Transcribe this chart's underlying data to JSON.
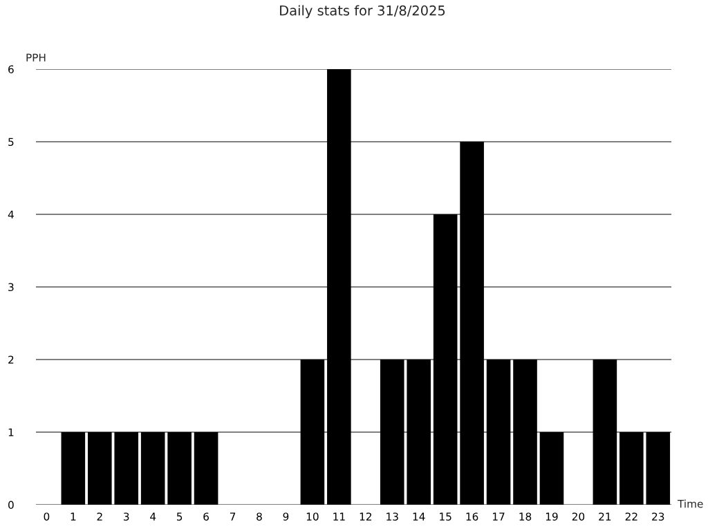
{
  "chart_data": {
    "type": "bar",
    "title": "Daily stats for 31/8/2025",
    "xlabel": "Time",
    "ylabel": "PPH",
    "categories": [
      "0",
      "1",
      "2",
      "3",
      "4",
      "5",
      "6",
      "7",
      "8",
      "9",
      "10",
      "11",
      "12",
      "13",
      "14",
      "15",
      "16",
      "17",
      "18",
      "19",
      "20",
      "21",
      "22",
      "23"
    ],
    "values": [
      0,
      1,
      1,
      1,
      1,
      1,
      1,
      0,
      0,
      0,
      2,
      6,
      0,
      2,
      2,
      4,
      5,
      2,
      2,
      1,
      0,
      2,
      1,
      1
    ],
    "color": "#000000",
    "ylim": [
      0,
      6
    ],
    "yticks": [
      0,
      1,
      2,
      3,
      4,
      5,
      6
    ],
    "grid": "y"
  }
}
